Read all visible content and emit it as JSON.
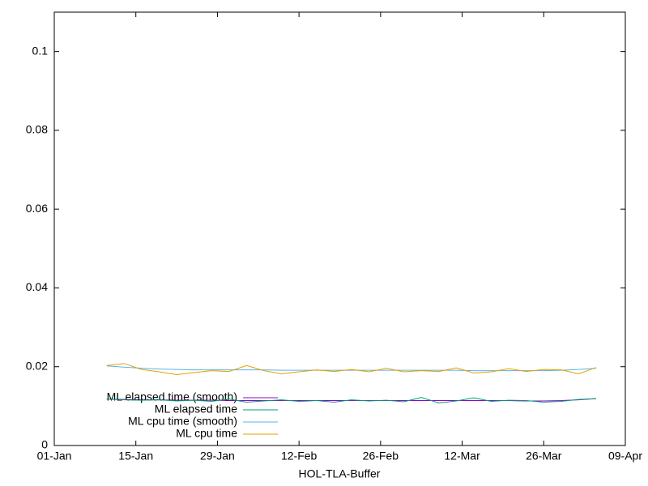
{
  "chart_data": {
    "type": "line",
    "xlabel": "HOL-TLA-Buffer",
    "x": [
      9,
      12,
      15,
      18,
      21,
      24,
      27,
      30,
      33,
      36,
      39,
      42,
      45,
      48,
      51,
      54,
      57,
      60,
      63,
      66,
      69,
      72,
      75,
      78,
      81,
      84,
      87,
      90,
      93
    ],
    "xlim": [
      0,
      98
    ],
    "xticks": [
      {
        "value": 0,
        "label": "01-Jan"
      },
      {
        "value": 14,
        "label": "15-Jan"
      },
      {
        "value": 28,
        "label": "29-Jan"
      },
      {
        "value": 42,
        "label": "12-Feb"
      },
      {
        "value": 56,
        "label": "26-Feb"
      },
      {
        "value": 70,
        "label": "12-Mar"
      },
      {
        "value": 84,
        "label": "26-Mar"
      },
      {
        "value": 98,
        "label": "09-Apr"
      }
    ],
    "ylim": [
      0,
      0.11
    ],
    "yticks": [
      0,
      0.02,
      0.04,
      0.06,
      0.08,
      0.1
    ],
    "grid": false,
    "legend": "bottom-left",
    "series": [
      {
        "name": "ML elapsed time (smooth)",
        "color": "#9400d3",
        "values": [
          0.0118,
          0.0117,
          0.0116,
          0.0116,
          0.0115,
          0.0115,
          0.0115,
          0.0114,
          0.0114,
          0.0114,
          0.0114,
          0.0114,
          0.0114,
          0.0114,
          0.0114,
          0.0114,
          0.0114,
          0.0114,
          0.0114,
          0.0114,
          0.0114,
          0.0114,
          0.0114,
          0.0114,
          0.0113,
          0.0113,
          0.0114,
          0.0116,
          0.0119
        ]
      },
      {
        "name": "ML elapsed time",
        "color": "#009e73",
        "values": [
          0.0118,
          0.0116,
          0.0115,
          0.0116,
          0.0113,
          0.0115,
          0.0112,
          0.0118,
          0.011,
          0.0113,
          0.0116,
          0.0112,
          0.0114,
          0.011,
          0.0116,
          0.0113,
          0.0115,
          0.0111,
          0.0122,
          0.0108,
          0.0113,
          0.0121,
          0.0112,
          0.0115,
          0.0114,
          0.011,
          0.0112,
          0.0117,
          0.0119
        ]
      },
      {
        "name": "ML cpu time (smooth)",
        "color": "#56b4e9",
        "values": [
          0.0202,
          0.0199,
          0.0196,
          0.0194,
          0.0193,
          0.0192,
          0.0192,
          0.0192,
          0.0192,
          0.0192,
          0.0191,
          0.0191,
          0.0191,
          0.0191,
          0.0191,
          0.0191,
          0.0191,
          0.0191,
          0.0191,
          0.0191,
          0.0191,
          0.019,
          0.019,
          0.019,
          0.019,
          0.019,
          0.0191,
          0.0193,
          0.0196
        ]
      },
      {
        "name": "ML cpu time",
        "color": "#e69f00",
        "values": [
          0.0203,
          0.0208,
          0.0193,
          0.0187,
          0.018,
          0.0185,
          0.019,
          0.0188,
          0.0203,
          0.019,
          0.0182,
          0.0187,
          0.0192,
          0.0188,
          0.0193,
          0.0187,
          0.0196,
          0.0187,
          0.019,
          0.0188,
          0.0197,
          0.0184,
          0.0187,
          0.0195,
          0.0188,
          0.0193,
          0.0192,
          0.0182,
          0.0198
        ]
      }
    ]
  }
}
